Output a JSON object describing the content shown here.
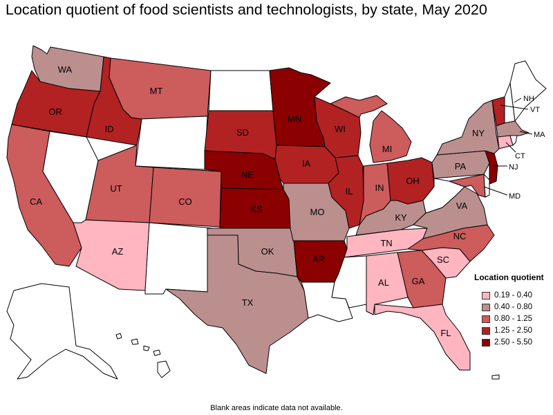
{
  "title": "Location quotient of food scientists and technologists, by state, May 2020",
  "legend": {
    "title": "Location quotient",
    "items": [
      {
        "label": "0.19 - 0.40",
        "color": "#ffb6c1"
      },
      {
        "label": "0.40 - 0.80",
        "color": "#bc8f8f"
      },
      {
        "label": "0.80 - 1.25",
        "color": "#cd5c5c"
      },
      {
        "label": "1.25 - 2.50",
        "color": "#b22222"
      },
      {
        "label": "2.50 - 5.50",
        "color": "#8b0000"
      }
    ]
  },
  "footnote": "Blank areas indicate data not available.",
  "states": {
    "WA": "WA",
    "OR": "OR",
    "CA": "CA",
    "ID": "ID",
    "MT": "MT",
    "UT": "UT",
    "AZ": "AZ",
    "CO": "CO",
    "SD": "SD",
    "NE": "NE",
    "KS": "KS",
    "OK": "OK",
    "TX": "TX",
    "MN": "MN",
    "IA": "IA",
    "MO": "MO",
    "AR": "AR",
    "WI": "WI",
    "IL": "IL",
    "MI": "MI",
    "IN": "IN",
    "OH": "OH",
    "KY": "KY",
    "TN": "TN",
    "AL": "AL",
    "GA": "GA",
    "FL": "FL",
    "SC": "SC",
    "NC": "NC",
    "VA": "VA",
    "PA": "PA",
    "NY": "NY",
    "VT": "VT",
    "NH": "NH",
    "MA": "MA",
    "CT": "CT",
    "NJ": "NJ",
    "MD": "MD"
  }
}
